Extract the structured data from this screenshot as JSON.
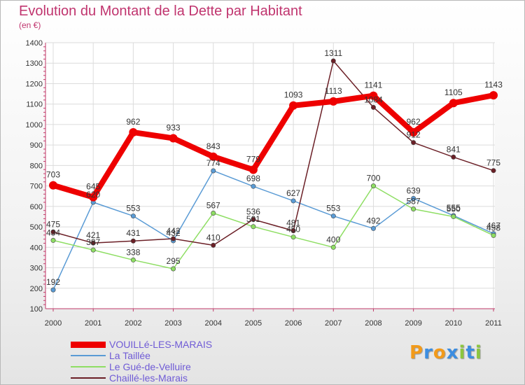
{
  "chart_data": {
    "type": "line",
    "title": "Evolution du Montant de la Dette par Habitant",
    "subtitle": "(en €)",
    "xlabel": "",
    "ylabel": "",
    "ylim": [
      100,
      1400
    ],
    "y_ticks": [
      100,
      200,
      300,
      400,
      500,
      600,
      700,
      800,
      900,
      1000,
      1100,
      1200,
      1300,
      1400
    ],
    "categories": [
      "2000",
      "2001",
      "2002",
      "2003",
      "2004",
      "2005",
      "2006",
      "2007",
      "2008",
      "2009",
      "2010",
      "2011"
    ],
    "grid": true,
    "legend_position": "bottom-left",
    "series": [
      {
        "name": "VOUILLé-LES-MARAIS",
        "color": "#ee0000",
        "emphasis": true,
        "values": [
          703,
          645,
          962,
          933,
          843,
          779,
          1093,
          1113,
          1141,
          962,
          1105,
          1143
        ]
      },
      {
        "name": "La Taillée",
        "color": "#5a9bd5",
        "emphasis": false,
        "values": [
          192,
          620,
          553,
          432,
          774,
          698,
          627,
          553,
          492,
          639,
          555,
          467
        ]
      },
      {
        "name": "Le Gué-de-Velluire",
        "color": "#8ede63",
        "emphasis": false,
        "values": [
          434,
          387,
          338,
          295,
          567,
          501,
          450,
          400,
          700,
          587,
          550,
          458
        ]
      },
      {
        "name": "Chaillé-les-Marais",
        "color": "#6b1f26",
        "emphasis": false,
        "values": [
          475,
          421,
          431,
          442,
          410,
          536,
          481,
          1311,
          1084,
          912,
          841,
          775
        ]
      }
    ]
  },
  "branding": {
    "logo_text": "Proxiti",
    "letters": [
      {
        "ch": "P",
        "color": "#f29a1a"
      },
      {
        "ch": "r",
        "color": "#3c8de0"
      },
      {
        "ch": "o",
        "color": "#f29a1a"
      },
      {
        "ch": "x",
        "color": "#3c8de0"
      },
      {
        "ch": "i",
        "color": "#8cc63f"
      },
      {
        "ch": "t",
        "color": "#3c8de0"
      },
      {
        "ch": "i",
        "color": "#8cc63f"
      }
    ]
  }
}
